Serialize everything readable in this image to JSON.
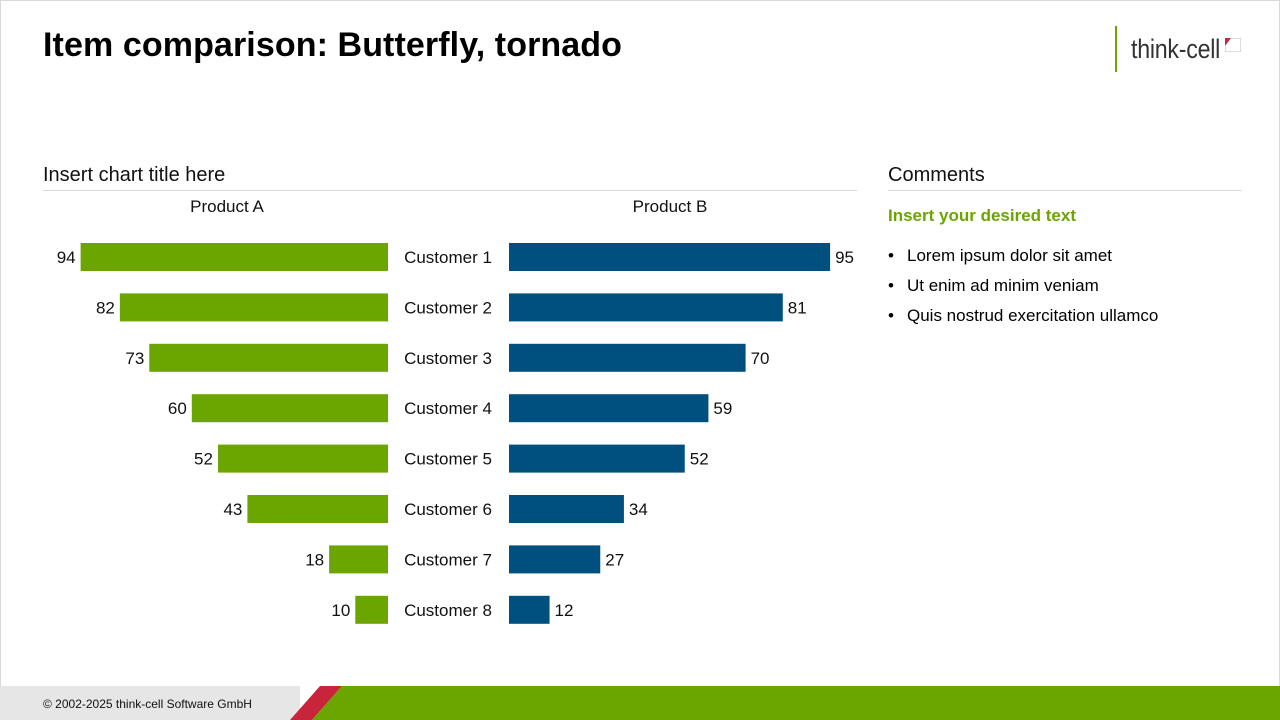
{
  "header": {
    "title": "Item comparison: Butterfly, tornado",
    "logo_text": "think-cell"
  },
  "chart_section": {
    "title": "Insert chart title here"
  },
  "comments": {
    "title": "Comments",
    "heading": "Insert your desired text",
    "items": [
      "Lorem ipsum dolor sit amet",
      "Ut enim ad minim veniam",
      "Quis nostrud exercitation ullamco"
    ]
  },
  "chart_data": {
    "type": "bar",
    "orientation": "horizontal-butterfly",
    "categories": [
      "Customer 1",
      "Customer 2",
      "Customer 3",
      "Customer 4",
      "Customer 5",
      "Customer 6",
      "Customer 7",
      "Customer 8"
    ],
    "series": [
      {
        "name": "Product A",
        "values": [
          94,
          82,
          73,
          60,
          52,
          43,
          18,
          10
        ],
        "color": "#6aa500",
        "side": "left"
      },
      {
        "name": "Product B",
        "values": [
          95,
          81,
          70,
          59,
          52,
          34,
          27,
          12
        ],
        "color": "#00507f",
        "side": "right"
      }
    ],
    "xlim": [
      0,
      100
    ],
    "grid": false,
    "data_labels": true
  },
  "footer": {
    "copyright": "© 2002-2025 think-cell Software GmbH",
    "bar_color": "#6aa500",
    "accent_color": "#c8243c",
    "band_color": "#e6e6e6"
  }
}
